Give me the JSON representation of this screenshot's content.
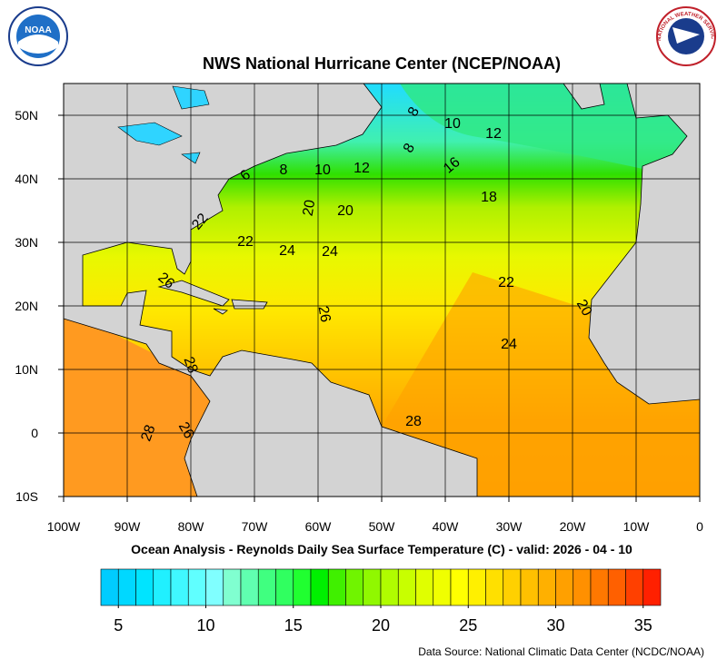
{
  "header": {
    "title": "NWS National Hurricane Center (NCEP/NOAA)",
    "noaa_logo": "NOAA",
    "nws_logo": "NATIONAL WEATHER SERVICE"
  },
  "map": {
    "lon_range": [
      -100,
      0
    ],
    "lat_range": [
      -10,
      55
    ],
    "lon_ticks": [
      {
        "value": -100,
        "label": "100W"
      },
      {
        "value": -90,
        "label": "90W"
      },
      {
        "value": -80,
        "label": "80W"
      },
      {
        "value": -70,
        "label": "70W"
      },
      {
        "value": -60,
        "label": "60W"
      },
      {
        "value": -50,
        "label": "50W"
      },
      {
        "value": -40,
        "label": "40W"
      },
      {
        "value": -30,
        "label": "30W"
      },
      {
        "value": -20,
        "label": "20W"
      },
      {
        "value": -10,
        "label": "10W"
      },
      0
    ],
    "lat_ticks": [
      {
        "value": 50,
        "label": "50N"
      },
      {
        "value": 40,
        "label": "40N"
      },
      {
        "value": 30,
        "label": "30N"
      },
      {
        "value": 20,
        "label": "20N"
      },
      {
        "value": 10,
        "label": "10N"
      },
      0,
      {
        "value": -10,
        "label": "10S"
      }
    ],
    "contour_labels": [
      8,
      10,
      12,
      6,
      8,
      10,
      12,
      8,
      16,
      18,
      20,
      20,
      22,
      22,
      24,
      24,
      22,
      26,
      26,
      20,
      24,
      28,
      28,
      28,
      26
    ]
  },
  "subtitle": "Ocean Analysis - Reynolds Daily Sea Surface Temperature (C) - valid: 2026 - 04 - 10",
  "colorbar": {
    "range": [
      4,
      36
    ],
    "ticks": [
      5,
      10,
      15,
      20,
      25,
      30,
      35
    ],
    "colors": [
      "#00ccff",
      "#00d8ff",
      "#00e4ff",
      "#20f0ff",
      "#40f8ff",
      "#60ffff",
      "#80ffff",
      "#80ffd0",
      "#60ffb0",
      "#40ff80",
      "#30ff60",
      "#20ff30",
      "#00f000",
      "#40f000",
      "#70f400",
      "#90f800",
      "#b0fc00",
      "#c8ff00",
      "#e0ff00",
      "#f0ff00",
      "#ffff00",
      "#fff000",
      "#ffe000",
      "#ffd000",
      "#ffc000",
      "#ffb000",
      "#ffa000",
      "#ff9000",
      "#ff7800",
      "#ff6000",
      "#ff4000",
      "#ff2000"
    ]
  },
  "footer": {
    "source": "Data Source: National Climatic Data Center (NCDC/NOAA)"
  }
}
